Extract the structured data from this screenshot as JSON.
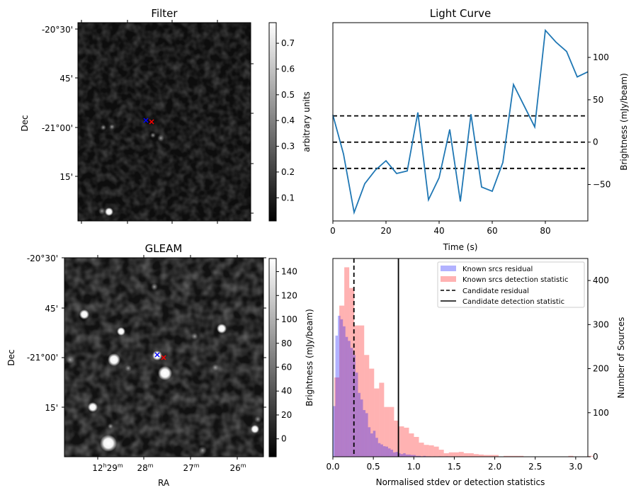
{
  "figure": {
    "panels": {
      "filter": {
        "title": "Filter",
        "ylabel": "Dec",
        "ytick_labels": [
          "-20°30'",
          "45'",
          "-21°00'",
          "15'"
        ],
        "colorbar": {
          "label": "arbitrary units",
          "tick_labels": [
            "0.1",
            "0.2",
            "0.3",
            "0.4",
            "0.5",
            "0.6",
            "0.7"
          ],
          "range": [
            0.01,
            0.78
          ]
        },
        "markers": [
          {
            "name": "candidate-blue",
            "color": "#0000ff",
            "symbol": "x"
          },
          {
            "name": "candidate-red",
            "color": "#ff0000",
            "symbol": "x"
          }
        ]
      },
      "gleam": {
        "title": "GLEAM",
        "xlabel": "RA",
        "ylabel": "Dec",
        "ytick_labels": [
          "-20°30'",
          "45'",
          "-21°00'",
          "15'"
        ],
        "xtick_labels": [
          {
            "main": "12",
            "sup1": "h",
            "mid": "29",
            "sup2": "m"
          },
          {
            "main": "",
            "sup1": "",
            "mid": "28",
            "sup2": "m"
          },
          {
            "main": "",
            "sup1": "",
            "mid": "27",
            "sup2": "m"
          },
          {
            "main": "",
            "sup1": "",
            "mid": "26",
            "sup2": "m"
          }
        ],
        "colorbar": {
          "label": "Brightness (mJy/beam)",
          "tick_labels": [
            "0",
            "20",
            "40",
            "60",
            "80",
            "100",
            "120",
            "140"
          ],
          "range": [
            -15,
            151
          ]
        },
        "markers": [
          {
            "name": "candidate-blue",
            "color": "#0000ff",
            "symbol": "x"
          },
          {
            "name": "candidate-red",
            "color": "#ff0000",
            "symbol": "x"
          }
        ]
      }
    }
  },
  "chart_data": [
    {
      "type": "line",
      "title": "Light Curve",
      "xlabel": "Time (s)",
      "ylabel": "Brightness (mJy/beam)",
      "xlim": [
        0,
        96
      ],
      "ylim": [
        -93,
        141
      ],
      "xticks": [
        0,
        20,
        40,
        60,
        80
      ],
      "yticks": [
        -50,
        0,
        50,
        100
      ],
      "ytick_labels": [
        "−50",
        "0",
        "50",
        "100"
      ],
      "yaxis_side": "right",
      "series": [
        {
          "name": "light-curve",
          "color": "#1f77b4",
          "x": [
            0,
            4,
            8,
            12,
            16,
            20,
            24,
            28,
            32,
            36,
            40,
            44,
            48,
            52,
            56,
            60,
            64,
            68,
            72,
            76,
            80,
            84,
            88,
            92,
            96
          ],
          "y": [
            32,
            -14,
            -83,
            -49,
            -33,
            -22,
            -37,
            -34,
            35,
            -68,
            -42,
            15,
            -70,
            33,
            -53,
            -58,
            -24,
            68,
            43,
            18,
            132,
            118,
            107,
            77,
            83
          ]
        }
      ],
      "hlines": [
        {
          "y": 31,
          "style": "dashed",
          "color": "#000000"
        },
        {
          "y": 0,
          "style": "dashed",
          "color": "#000000"
        },
        {
          "y": -31,
          "style": "dashed",
          "color": "#000000"
        }
      ]
    },
    {
      "type": "bar",
      "subtype": "histogram",
      "title": "",
      "xlabel": "Normalised stdev or detection statistics",
      "ylabel": "Number of Sources",
      "xlim": [
        0,
        3.15
      ],
      "ylim": [
        0,
        450
      ],
      "xticks": [
        0.0,
        0.5,
        1.0,
        1.5,
        2.0,
        2.5,
        3.0
      ],
      "xtick_labels": [
        "0.0",
        "0.5",
        "1.0",
        "1.5",
        "2.0",
        "2.5",
        "3.0"
      ],
      "yticks": [
        0,
        100,
        200,
        300,
        400
      ],
      "yaxis_side": "right",
      "legend": {
        "placement": "top-right",
        "entries": [
          {
            "label": "Known srcs residual",
            "kind": "patch",
            "color": "#0000ff",
            "alpha": 0.3
          },
          {
            "label": "Known srcs detection statistic",
            "kind": "patch",
            "color": "#ff0000",
            "alpha": 0.3
          },
          {
            "label": "Candidate residual",
            "kind": "line",
            "style": "dashed",
            "color": "#000000"
          },
          {
            "label": "Candidate detection statistic",
            "kind": "line",
            "style": "solid",
            "color": "#000000"
          }
        ]
      },
      "series": [
        {
          "name": "Known srcs residual",
          "color": "#0000ff",
          "alpha": 0.3,
          "bin_start": 0.0,
          "bin_width": 0.031,
          "counts": [
            115,
            275,
            320,
            312,
            296,
            272,
            263,
            247,
            231,
            191,
            145,
            130,
            106,
            99,
            67,
            53,
            59,
            43,
            31,
            28,
            24,
            23,
            19,
            16,
            10,
            11,
            8,
            6,
            8,
            5,
            5,
            4,
            4,
            2,
            2,
            1,
            2,
            1,
            1,
            0,
            1,
            0,
            1,
            0,
            0,
            1
          ]
        },
        {
          "name": "Known srcs detection statistic",
          "color": "#ff0000",
          "alpha": 0.3,
          "bin_start": 0.018,
          "bin_width": 0.0615,
          "counts": [
            180,
            343,
            430,
            383,
            298,
            298,
            231,
            200,
            155,
            168,
            113,
            113,
            82,
            69,
            66,
            53,
            45,
            32,
            27,
            26,
            23,
            16,
            8,
            10,
            10,
            11,
            8,
            8,
            6,
            5,
            4,
            4,
            4,
            0,
            2,
            2,
            2,
            2,
            0,
            0,
            0,
            0,
            0,
            0,
            0,
            0,
            0,
            2,
            0,
            0,
            0,
            2
          ]
        }
      ],
      "vlines": [
        {
          "label": "Candidate residual",
          "x": 0.26,
          "style": "dashed",
          "color": "#000000"
        },
        {
          "label": "Candidate detection statistic",
          "x": 0.81,
          "style": "solid",
          "color": "#000000"
        }
      ]
    }
  ]
}
